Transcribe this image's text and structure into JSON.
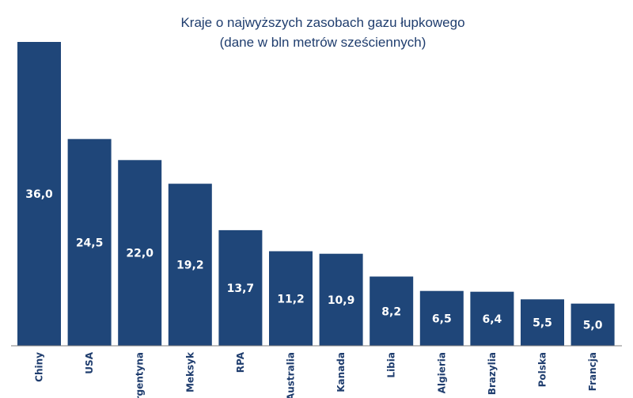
{
  "chart_data": {
    "type": "bar",
    "title": "Kraje o najwyższych zasobach gazu łupkowego",
    "subtitle": "(dane w bln metrów sześciennych)",
    "categories": [
      "Chiny",
      "USA",
      "Argentyna",
      "Meksyk",
      "RPA",
      "Australia",
      "Kanada",
      "Libia",
      "Algieria",
      "Brazylia",
      "Polska",
      "Francja"
    ],
    "values": [
      36.0,
      24.5,
      22.0,
      19.2,
      13.7,
      11.2,
      10.9,
      8.2,
      6.5,
      6.4,
      5.5,
      5.0
    ],
    "value_labels": [
      "36,0",
      "24,5",
      "22,0",
      "19,2",
      "13,7",
      "11,2",
      "10,9",
      "8,2",
      "6,5",
      "6,4",
      "5,5",
      "5,0"
    ],
    "ylim": [
      0,
      36.0
    ],
    "grid": false,
    "legend": "none",
    "bar_color": "#1f4679",
    "label_color": "#1f3d6e"
  }
}
